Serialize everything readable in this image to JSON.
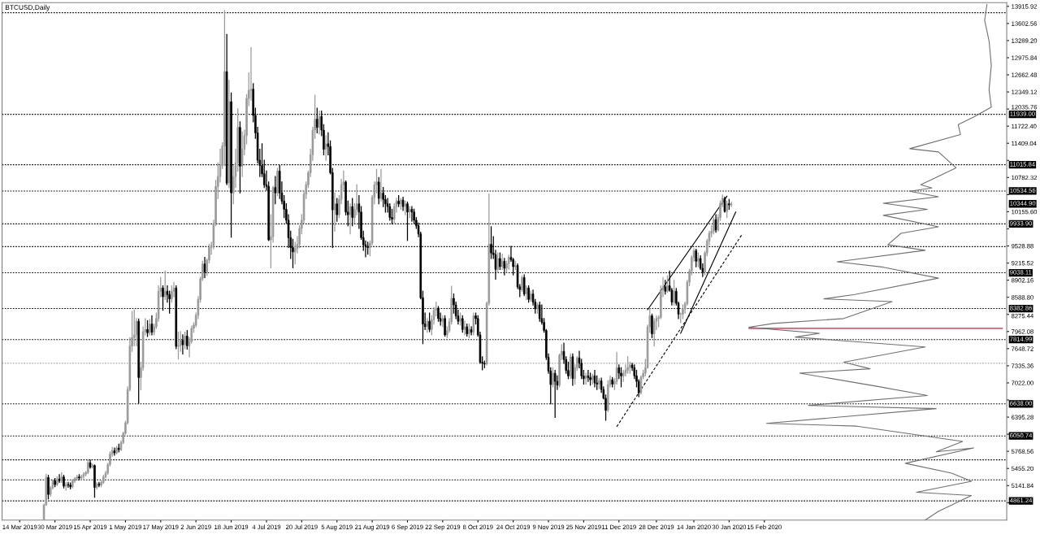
{
  "chart_data": {
    "type": "candlestick",
    "title": "BTCUSD,Daily",
    "annotations": [
      "10344.90"
    ],
    "xlim": [
      "2019-03-06",
      "2020-06-04"
    ],
    "ylim": [
      4509,
      13983
    ],
    "xticks": [
      {
        "value": "2019-03-14",
        "label": "14 Mar 2019"
      },
      {
        "value": "2019-03-30",
        "label": "30 Mar 2019"
      },
      {
        "value": "2019-04-15",
        "label": "15 Apr 2019"
      },
      {
        "value": "2019-05-01",
        "label": "1 May 2019"
      },
      {
        "value": "2019-05-17",
        "label": "17 May 2019"
      },
      {
        "value": "2019-06-02",
        "label": "2 Jun 2019"
      },
      {
        "value": "2019-06-18",
        "label": "18 Jun 2019"
      },
      {
        "value": "2019-07-04",
        "label": "4 Jul 2019"
      },
      {
        "value": "2019-07-20",
        "label": "20 Jul 2019"
      },
      {
        "value": "2019-08-05",
        "label": "5 Aug 2019"
      },
      {
        "value": "2019-08-21",
        "label": "21 Aug 2019"
      },
      {
        "value": "2019-09-06",
        "label": "6 Sep 2019"
      },
      {
        "value": "2019-09-22",
        "label": "22 Sep 2019"
      },
      {
        "value": "2019-10-08",
        "label": "8 Oct 2019"
      },
      {
        "value": "2019-10-24",
        "label": "24 Oct 2019"
      },
      {
        "value": "2019-11-09",
        "label": "9 Nov 2019"
      },
      {
        "value": "2019-11-25",
        "label": "25 Nov 2019"
      },
      {
        "value": "2019-12-11",
        "label": "11 Dec 2019"
      },
      {
        "value": "2019-12-28",
        "label": "28 Dec 2019"
      },
      {
        "value": "2020-01-14",
        "label": "14 Jan 2020"
      },
      {
        "value": "2020-01-30",
        "label": "30 Jan 2020"
      },
      {
        "value": "2020-02-15",
        "label": "15 Feb 2020"
      }
    ],
    "yticks": [
      13915.92,
      13602.56,
      {
        "value": 13289.2,
        "label": "13289.20"
      },
      12975.84,
      12662.48,
      12349.12,
      12035.76,
      {
        "value": 11722.4,
        "label": "11722.40"
      },
      11409.04,
      {
        "value": 11095.68,
        "label": null
      },
      10782.32,
      {
        "value": 10468.96,
        "label": null
      },
      {
        "value": 10155.6,
        "label": "10155.60"
      },
      {
        "value": 9842.24,
        "label": null
      },
      9528.88,
      9215.52,
      8902.16,
      {
        "value": 8588.8,
        "label": "8588.80"
      },
      8275.44,
      7962.08,
      7648.72,
      7335.36,
      {
        "value": 7022.0,
        "label": "7022.00"
      },
      {
        "value": 6708.64,
        "label": null
      },
      6395.28,
      {
        "value": 6081.92,
        "label": null
      },
      5768.56,
      {
        "value": 5455.2,
        "label": "5455.20"
      },
      5141.84,
      {
        "value": 4828.48,
        "label": null
      }
    ],
    "ref_lines": [
      {
        "axis": "y",
        "value": 13800,
        "label": null,
        "color": "#000000",
        "line_style": "dotted"
      },
      {
        "axis": "y",
        "value": 11939.0,
        "label": "11939.00",
        "color": "#000000",
        "line_style": "dotted"
      },
      {
        "axis": "y",
        "value": 11015.84,
        "label": "11015.84",
        "color": "#000000",
        "line_style": "dotted"
      },
      {
        "axis": "y",
        "value": 10534.56,
        "label": "10534.56",
        "color": "#000000",
        "line_style": "dotted"
      },
      {
        "axis": "y",
        "value": 9933.9,
        "label": "9933.90",
        "color": "#000000",
        "line_style": "dotted"
      },
      {
        "axis": "y",
        "value": 9517,
        "label": null,
        "color": "#000000",
        "line_style": "dotted"
      },
      {
        "axis": "y",
        "value": 9038.11,
        "label": "9038.11",
        "color": "#000000",
        "line_style": "dotted"
      },
      {
        "axis": "y",
        "value": 8382.86,
        "label": "8382.86",
        "color": "#000000",
        "line_style": "dotted"
      },
      {
        "axis": "y",
        "value": 7814.99,
        "label": "7814.99",
        "color": "#000000",
        "line_style": "dotted"
      },
      {
        "axis": "y",
        "value": 7380,
        "label": null,
        "color": "#a8a8a8",
        "line_style": "dotted"
      },
      {
        "axis": "y",
        "value": 6638.0,
        "label": "6638.00",
        "color": "#000000",
        "line_style": "dotted"
      },
      {
        "axis": "y",
        "value": 6050.74,
        "label": "6050.74",
        "color": "#000000",
        "line_style": "dotted"
      },
      {
        "axis": "y",
        "value": 5613,
        "label": null,
        "color": "#000000",
        "line_style": "dotted"
      },
      {
        "axis": "y",
        "value": 5247,
        "label": null,
        "color": "#000000",
        "line_style": "dotted"
      },
      {
        "axis": "y",
        "value": 4861.24,
        "label": "4861.24",
        "color": "#000000",
        "line_style": "dotted"
      }
    ],
    "series": [
      {
        "type": "line",
        "color": "#000000",
        "x": [
          "2019-12-24",
          "2020-01-29"
        ],
        "values": [
          8360,
          10440
        ]
      },
      {
        "type": "line",
        "color": "#000000",
        "x": [
          "2020-01-08",
          "2020-02-02"
        ],
        "values": [
          7930,
          10150
        ]
      },
      {
        "type": "line",
        "color": "#000000",
        "line_style": "dashed",
        "x": [
          "2019-12-10",
          "2020-02-05"
        ],
        "values": [
          6220,
          9750
        ]
      },
      {
        "type": "line",
        "color": "#e0103a",
        "x": [
          "2020-02-08",
          "2020-06-02"
        ],
        "values": [
          8020,
          8020
        ]
      },
      {
        "type": "line",
        "color": "#707070",
        "x": [
          "2020-05-26",
          "2020-05-25",
          "2020-05-27",
          "2020-05-28",
          "2020-05-27",
          "2020-05-28",
          "2020-05-20",
          "2020-05-13",
          "2020-05-14",
          "2020-04-21",
          "2020-05-04",
          "2020-05-12",
          "2020-04-26",
          "2020-05-01",
          "2020-04-21",
          "2020-05-04",
          "2020-04-09",
          "2020-04-29",
          "2020-04-09",
          "2020-05-04",
          "2020-04-17",
          "2020-04-11",
          "2020-04-28",
          "2020-03-19",
          "2020-04-09",
          "2020-05-04",
          "2020-03-27",
          "2020-03-13",
          "2020-04-13",
          "2020-03-22",
          "2020-02-19",
          "2020-02-08",
          "2020-03-11",
          "2020-02-29",
          "2020-04-28",
          "2020-03-22",
          "2020-04-03",
          "2020-03-02",
          "2020-04-06",
          "2020-04-29",
          "2020-03-06",
          "2020-05-03",
          "2020-02-16",
          "2020-03-28",
          "2020-05-15",
          "2020-05-03",
          "2020-05-20",
          "2020-04-19",
          "2020-05-10",
          "2020-05-19",
          "2020-04-24",
          "2020-05-19",
          "2020-05-04",
          "2020-04-28"
        ],
        "values": [
          13950,
          13660,
          13280,
          12840,
          12390,
          12070,
          11890,
          11750,
          11570,
          11310,
          11250,
          10960,
          10650,
          10590,
          10530,
          10430,
          10310,
          10200,
          10090,
          9880,
          9760,
          9550,
          9450,
          9240,
          9140,
          8940,
          8640,
          8560,
          8510,
          8200,
          8110,
          8040,
          7930,
          7860,
          7680,
          7400,
          7280,
          7200,
          6960,
          6790,
          6610,
          6550,
          6280,
          6230,
          5950,
          5760,
          5830,
          5550,
          5370,
          5220,
          5020,
          4960,
          4670,
          4510
        ]
      }
    ],
    "x": [
      "2019-03-25",
      "2019-03-26",
      "2019-03-27",
      "2019-03-28",
      "2019-03-29",
      "2019-03-30",
      "2019-03-31",
      "2019-04-01",
      "2019-04-02",
      "2019-04-03",
      "2019-04-04",
      "2019-04-05",
      "2019-04-06",
      "2019-04-07",
      "2019-04-08",
      "2019-04-09",
      "2019-04-10",
      "2019-04-11",
      "2019-04-12",
      "2019-04-13",
      "2019-04-14",
      "2019-04-15",
      "2019-04-16",
      "2019-04-17",
      "2019-04-18",
      "2019-04-19",
      "2019-04-20",
      "2019-04-21",
      "2019-04-22",
      "2019-04-23",
      "2019-04-24",
      "2019-04-25",
      "2019-04-26",
      "2019-04-27",
      "2019-04-28",
      "2019-04-29",
      "2019-04-30",
      "2019-05-01",
      "2019-05-02",
      "2019-05-03",
      "2019-05-04",
      "2019-05-05",
      "2019-05-06",
      "2019-05-07",
      "2019-05-08",
      "2019-05-09",
      "2019-05-10",
      "2019-05-11",
      "2019-05-12",
      "2019-05-13",
      "2019-05-14",
      "2019-05-15",
      "2019-05-16",
      "2019-05-17",
      "2019-05-18",
      "2019-05-19",
      "2019-05-20",
      "2019-05-21",
      "2019-05-22",
      "2019-05-23",
      "2019-05-24",
      "2019-05-25",
      "2019-05-26",
      "2019-05-27",
      "2019-05-28",
      "2019-05-29",
      "2019-05-30",
      "2019-05-31",
      "2019-06-01",
      "2019-06-02",
      "2019-06-03",
      "2019-06-04",
      "2019-06-05",
      "2019-06-06",
      "2019-06-07",
      "2019-06-08",
      "2019-06-09",
      "2019-06-10",
      "2019-06-11",
      "2019-06-12",
      "2019-06-13",
      "2019-06-14",
      "2019-06-15",
      "2019-06-16",
      "2019-06-17",
      "2019-06-18",
      "2019-06-19",
      "2019-06-20",
      "2019-06-21",
      "2019-06-22",
      "2019-06-23",
      "2019-06-24",
      "2019-06-25",
      "2019-06-26",
      "2019-06-27",
      "2019-06-28",
      "2019-06-29",
      "2019-06-30",
      "2019-07-01",
      "2019-07-02",
      "2019-07-03",
      "2019-07-04",
      "2019-07-05",
      "2019-07-06",
      "2019-07-07",
      "2019-07-08",
      "2019-07-09",
      "2019-07-10",
      "2019-07-11",
      "2019-07-12",
      "2019-07-13",
      "2019-07-14",
      "2019-07-15",
      "2019-07-16",
      "2019-07-17",
      "2019-07-18",
      "2019-07-19",
      "2019-07-20",
      "2019-07-21",
      "2019-07-22",
      "2019-07-23",
      "2019-07-24",
      "2019-07-25",
      "2019-07-26",
      "2019-07-27",
      "2019-07-28",
      "2019-07-29",
      "2019-07-30",
      "2019-07-31",
      "2019-08-01",
      "2019-08-02",
      "2019-08-03",
      "2019-08-04",
      "2019-08-05",
      "2019-08-06",
      "2019-08-07",
      "2019-08-08",
      "2019-08-09",
      "2019-08-10",
      "2019-08-11",
      "2019-08-12",
      "2019-08-13",
      "2019-08-14",
      "2019-08-15",
      "2019-08-16",
      "2019-08-17",
      "2019-08-18",
      "2019-08-19",
      "2019-08-20",
      "2019-08-21",
      "2019-08-22",
      "2019-08-23",
      "2019-08-24",
      "2019-08-25",
      "2019-08-26",
      "2019-08-27",
      "2019-08-28",
      "2019-08-29",
      "2019-08-30",
      "2019-08-31",
      "2019-09-01",
      "2019-09-02",
      "2019-09-03",
      "2019-09-04",
      "2019-09-05",
      "2019-09-06",
      "2019-09-07",
      "2019-09-08",
      "2019-09-09",
      "2019-09-10",
      "2019-09-11",
      "2019-09-12",
      "2019-09-13",
      "2019-09-14",
      "2019-09-15",
      "2019-09-16",
      "2019-09-17",
      "2019-09-18",
      "2019-09-19",
      "2019-09-20",
      "2019-09-21",
      "2019-09-22",
      "2019-09-23",
      "2019-09-24",
      "2019-09-25",
      "2019-09-26",
      "2019-09-27",
      "2019-09-28",
      "2019-09-29",
      "2019-09-30",
      "2019-10-01",
      "2019-10-02",
      "2019-10-03",
      "2019-10-04",
      "2019-10-05",
      "2019-10-06",
      "2019-10-07",
      "2019-10-08",
      "2019-10-09",
      "2019-10-10",
      "2019-10-11",
      "2019-10-12",
      "2019-10-13",
      "2019-10-14",
      "2019-10-15",
      "2019-10-16",
      "2019-10-17",
      "2019-10-18",
      "2019-10-19",
      "2019-10-20",
      "2019-10-21",
      "2019-10-22",
      "2019-10-23",
      "2019-10-24",
      "2019-10-25",
      "2019-10-26",
      "2019-10-27",
      "2019-10-28",
      "2019-10-29",
      "2019-10-30",
      "2019-10-31",
      "2019-11-01",
      "2019-11-02",
      "2019-11-03",
      "2019-11-04",
      "2019-11-05",
      "2019-11-06",
      "2019-11-07",
      "2019-11-08",
      "2019-11-09",
      "2019-11-10",
      "2019-11-11",
      "2019-11-12",
      "2019-11-13",
      "2019-11-14",
      "2019-11-15",
      "2019-11-16",
      "2019-11-17",
      "2019-11-18",
      "2019-11-19",
      "2019-11-20",
      "2019-11-21",
      "2019-11-22",
      "2019-11-23",
      "2019-11-24",
      "2019-11-25",
      "2019-11-26",
      "2019-11-27",
      "2019-11-28",
      "2019-11-29",
      "2019-11-30",
      "2019-12-01",
      "2019-12-02",
      "2019-12-03",
      "2019-12-04",
      "2019-12-05",
      "2019-12-06",
      "2019-12-07",
      "2019-12-08",
      "2019-12-09",
      "2019-12-10",
      "2019-12-11",
      "2019-12-12",
      "2019-12-13",
      "2019-12-14",
      "2019-12-15",
      "2019-12-16",
      "2019-12-17",
      "2019-12-18",
      "2019-12-19",
      "2019-12-20",
      "2019-12-21",
      "2019-12-22",
      "2019-12-23",
      "2019-12-24",
      "2019-12-25",
      "2019-12-26",
      "2019-12-27",
      "2019-12-28",
      "2019-12-29",
      "2019-12-30",
      "2019-12-31",
      "2020-01-01",
      "2020-01-02",
      "2020-01-03",
      "2020-01-04",
      "2020-01-05",
      "2020-01-06",
      "2020-01-07",
      "2020-01-08",
      "2020-01-09",
      "2020-01-10",
      "2020-01-11",
      "2020-01-12",
      "2020-01-13",
      "2020-01-14",
      "2020-01-15",
      "2020-01-16",
      "2020-01-17",
      "2020-01-18",
      "2020-01-19",
      "2020-01-20",
      "2020-01-21",
      "2020-01-22",
      "2020-01-23",
      "2020-01-24",
      "2020-01-25",
      "2020-01-26",
      "2020-01-27",
      "2020-01-28",
      "2020-01-29",
      "2020-01-30",
      "2020-01-31"
    ],
    "ohlc": [
      [
        4520,
        4800,
        4520,
        4790
      ],
      [
        4790,
        5350,
        4780,
        5290
      ],
      [
        5290,
        5330,
        4900,
        4980
      ],
      [
        4980,
        5130,
        4950,
        5100
      ],
      [
        5100,
        5250,
        5080,
        5230
      ],
      [
        5230,
        5270,
        5120,
        5160
      ],
      [
        5160,
        5300,
        5140,
        5260
      ],
      [
        5260,
        5340,
        5200,
        5230
      ],
      [
        5230,
        5380,
        5200,
        5300
      ],
      [
        5300,
        5330,
        5100,
        5130
      ],
      [
        5130,
        5200,
        5060,
        5160
      ],
      [
        5160,
        5200,
        5110,
        5150
      ],
      [
        5150,
        5190,
        5080,
        5120
      ],
      [
        5120,
        5250,
        5100,
        5230
      ],
      [
        5230,
        5290,
        5200,
        5270
      ],
      [
        5270,
        5330,
        5240,
        5300
      ],
      [
        5300,
        5340,
        5250,
        5280
      ],
      [
        5280,
        5330,
        5240,
        5310
      ],
      [
        5310,
        5380,
        5270,
        5350
      ],
      [
        5350,
        5400,
        5320,
        5380
      ],
      [
        5380,
        5600,
        5360,
        5560
      ],
      [
        5560,
        5610,
        5460,
        5480
      ],
      [
        5480,
        5540,
        5460,
        5510
      ],
      [
        5510,
        5520,
        4930,
        5110
      ],
      [
        5110,
        5200,
        5080,
        5170
      ],
      [
        5170,
        5200,
        5120,
        5150
      ],
      [
        5150,
        5230,
        5120,
        5200
      ],
      [
        5200,
        5330,
        5180,
        5300
      ],
      [
        5300,
        5400,
        5280,
        5370
      ],
      [
        5370,
        5550,
        5350,
        5530
      ],
      [
        5530,
        5760,
        5500,
        5720
      ],
      [
        5720,
        5840,
        5680,
        5780
      ],
      [
        5780,
        5830,
        5700,
        5740
      ],
      [
        5740,
        5860,
        5720,
        5830
      ],
      [
        5830,
        5900,
        5760,
        5800
      ],
      [
        5800,
        5960,
        5780,
        5930
      ],
      [
        5930,
        6120,
        5910,
        6100
      ],
      [
        6100,
        6320,
        6080,
        6290
      ],
      [
        6290,
        6950,
        6270,
        6900
      ],
      [
        6900,
        7850,
        6880,
        7700
      ],
      [
        7700,
        8330,
        7600,
        7850
      ],
      [
        7850,
        8360,
        7700,
        7900
      ],
      [
        7900,
        8200,
        7700,
        8150
      ],
      [
        8150,
        8190,
        6650,
        7120
      ],
      [
        7120,
        7400,
        6900,
        7300
      ],
      [
        7300,
        8050,
        7250,
        7960
      ],
      [
        7960,
        8200,
        7900,
        8000
      ],
      [
        8000,
        8160,
        7870,
        7940
      ],
      [
        7940,
        8180,
        7900,
        8100
      ],
      [
        8100,
        8250,
        7900,
        7950
      ],
      [
        7950,
        8100,
        7900,
        8050
      ],
      [
        8050,
        8300,
        8020,
        8200
      ],
      [
        8200,
        8800,
        8150,
        8700
      ],
      [
        8700,
        8950,
        8600,
        8760
      ],
      [
        8760,
        8800,
        8350,
        8600
      ],
      [
        8600,
        9070,
        8550,
        8700
      ],
      [
        8700,
        8800,
        8500,
        8640
      ],
      [
        8640,
        8700,
        8300,
        8560
      ],
      [
        8560,
        8800,
        8500,
        8700
      ],
      [
        8700,
        8860,
        8600,
        8760
      ],
      [
        8760,
        8800,
        7650,
        7690
      ],
      [
        7690,
        7950,
        7460,
        7700
      ],
      [
        7700,
        7960,
        7600,
        7800
      ],
      [
        7800,
        7900,
        7550,
        7720
      ],
      [
        7720,
        7950,
        7650,
        7880
      ],
      [
        7880,
        7980,
        7640,
        7700
      ],
      [
        7700,
        7850,
        7500,
        7780
      ],
      [
        7780,
        8060,
        7750,
        8020
      ],
      [
        8020,
        8120,
        7950,
        8080
      ],
      [
        8080,
        8300,
        8050,
        8260
      ],
      [
        8260,
        8600,
        8200,
        8550
      ],
      [
        8550,
        8960,
        8500,
        8930
      ],
      [
        8930,
        9250,
        8900,
        9200
      ],
      [
        9200,
        9320,
        8950,
        9050
      ],
      [
        9050,
        9290,
        8990,
        9270
      ],
      [
        9270,
        9560,
        9220,
        9500
      ],
      [
        9500,
        9600,
        9380,
        9540
      ],
      [
        9540,
        10000,
        9480,
        9940
      ],
      [
        9940,
        10730,
        9900,
        10620
      ],
      [
        10620,
        11050,
        10400,
        10800
      ],
      [
        10800,
        11300,
        10700,
        11000
      ],
      [
        11000,
        11420,
        10950,
        11360
      ],
      [
        11360,
        13840,
        11000,
        12720
      ],
      [
        12720,
        13400,
        10650,
        10680
      ],
      [
        10680,
        12560,
        10600,
        12170
      ],
      [
        12170,
        12330,
        9690,
        10500
      ],
      [
        10500,
        11000,
        10300,
        10800
      ],
      [
        10800,
        11300,
        10600,
        11050
      ],
      [
        11050,
        12040,
        10900,
        11700
      ],
      [
        11700,
        11800,
        10500,
        10990
      ],
      [
        10990,
        11620,
        10800,
        11300
      ],
      [
        11300,
        11650,
        11200,
        11550
      ],
      [
        11550,
        12300,
        11400,
        12230
      ],
      [
        12230,
        12700,
        12100,
        12380
      ],
      [
        12380,
        13160,
        12200,
        12400
      ],
      [
        12400,
        12500,
        11800,
        11920
      ],
      [
        11920,
        12050,
        11500,
        11600
      ],
      [
        11600,
        11700,
        11050,
        11100
      ],
      [
        11100,
        11300,
        10800,
        11000
      ],
      [
        11000,
        11400,
        10800,
        10850
      ],
      [
        10850,
        11100,
        10600,
        10650
      ],
      [
        10650,
        10900,
        10550,
        10620
      ],
      [
        10620,
        10700,
        9630,
        9640
      ],
      [
        9640,
        10100,
        9130,
        9700
      ],
      [
        9700,
        10620,
        9600,
        10600
      ],
      [
        10600,
        10800,
        10300,
        10500
      ],
      [
        10500,
        10950,
        10450,
        10900
      ],
      [
        10900,
        11000,
        10400,
        10500
      ],
      [
        10500,
        10700,
        10300,
        10350
      ],
      [
        10350,
        10450,
        10050,
        10200
      ],
      [
        10200,
        10300,
        9950,
        10000
      ],
      [
        10000,
        10100,
        9500,
        9680
      ],
      [
        9680,
        9800,
        9300,
        9500
      ],
      [
        9500,
        9650,
        9130,
        9420
      ],
      [
        9420,
        9600,
        9200,
        9480
      ],
      [
        9480,
        9700,
        9400,
        9560
      ],
      [
        9560,
        9900,
        9500,
        9850
      ],
      [
        9850,
        10100,
        9750,
        10000
      ],
      [
        10000,
        10520,
        9950,
        10480
      ],
      [
        10480,
        10700,
        10400,
        10650
      ],
      [
        10650,
        10900,
        10600,
        10870
      ],
      [
        10870,
        11300,
        10800,
        11200
      ],
      [
        11200,
        11700,
        11100,
        11650
      ],
      [
        11650,
        12290,
        11500,
        11850
      ],
      [
        11850,
        12050,
        11600,
        11700
      ],
      [
        11700,
        12000,
        11580,
        11900
      ],
      [
        11900,
        12000,
        11550,
        11650
      ],
      [
        11650,
        11750,
        11200,
        11300
      ],
      [
        11300,
        11550,
        11100,
        11400
      ],
      [
        11400,
        11600,
        11200,
        11350
      ],
      [
        11350,
        11450,
        10850,
        10870
      ],
      [
        10870,
        10950,
        9500,
        10190
      ],
      [
        10190,
        10500,
        9800,
        10300
      ],
      [
        10300,
        10400,
        9980,
        10100
      ],
      [
        10100,
        10450,
        10050,
        10380
      ],
      [
        10380,
        10750,
        10300,
        10650
      ],
      [
        10650,
        10900,
        10550,
        10700
      ],
      [
        10700,
        10720,
        10100,
        10150
      ],
      [
        10150,
        10350,
        9900,
        10100
      ],
      [
        10100,
        10300,
        9750,
        10250
      ],
      [
        10250,
        10400,
        9900,
        10050
      ],
      [
        10050,
        10300,
        9950,
        10200
      ],
      [
        10200,
        10650,
        10100,
        10300
      ],
      [
        10300,
        10450,
        9850,
        10150
      ],
      [
        10150,
        10250,
        9650,
        9680
      ],
      [
        9680,
        9800,
        9450,
        9550
      ],
      [
        9550,
        9620,
        9330,
        9520
      ],
      [
        9520,
        9600,
        9380,
        9500
      ],
      [
        9500,
        9620,
        9350,
        9580
      ],
      [
        9580,
        10450,
        9550,
        10420
      ],
      [
        10420,
        10700,
        10300,
        10650
      ],
      [
        10650,
        10930,
        10500,
        10700
      ],
      [
        10700,
        10780,
        10300,
        10400
      ],
      [
        10400,
        10930,
        10350,
        10500
      ],
      [
        10500,
        10600,
        10250,
        10380
      ],
      [
        10380,
        10450,
        10150,
        10300
      ],
      [
        10300,
        10400,
        10150,
        10250
      ],
      [
        10250,
        10300,
        10000,
        10050
      ],
      [
        10050,
        10200,
        9930,
        10020
      ],
      [
        10020,
        10300,
        9950,
        10250
      ],
      [
        10250,
        10400,
        10150,
        10350
      ],
      [
        10350,
        10450,
        10250,
        10300
      ],
      [
        10300,
        10400,
        10200,
        10370
      ],
      [
        10370,
        10420,
        10180,
        10250
      ],
      [
        10250,
        10350,
        10100,
        10300
      ],
      [
        10300,
        10330,
        9630,
        10150
      ],
      [
        10150,
        10250,
        10050,
        10200
      ],
      [
        10200,
        10250,
        9980,
        10150
      ],
      [
        10150,
        10200,
        9950,
        10000
      ],
      [
        10000,
        10050,
        9850,
        9900
      ],
      [
        9900,
        9950,
        9700,
        9750
      ],
      [
        9750,
        9780,
        8560,
        8580
      ],
      [
        8580,
        8700,
        7740,
        8100
      ],
      [
        8100,
        8300,
        8000,
        8050
      ],
      [
        8050,
        8200,
        7950,
        8150
      ],
      [
        8150,
        8300,
        7960,
        8000
      ],
      [
        8000,
        8250,
        7900,
        8180
      ],
      [
        8180,
        8400,
        8100,
        8350
      ],
      [
        8350,
        8500,
        8250,
        8390
      ],
      [
        8390,
        8420,
        8150,
        8200
      ],
      [
        8200,
        8300,
        8080,
        8150
      ],
      [
        8150,
        8250,
        8050,
        8200
      ],
      [
        8200,
        8250,
        7880,
        7900
      ],
      [
        7900,
        8050,
        7850,
        7980
      ],
      [
        7980,
        8200,
        7950,
        8140
      ],
      [
        8140,
        8790,
        8100,
        8570
      ],
      [
        8570,
        8650,
        8300,
        8450
      ],
      [
        8450,
        8500,
        8200,
        8250
      ],
      [
        8250,
        8350,
        8100,
        8150
      ],
      [
        8150,
        8300,
        8080,
        8200
      ],
      [
        8200,
        8250,
        7950,
        8000
      ],
      [
        8000,
        8150,
        7900,
        8050
      ],
      [
        8050,
        8100,
        7880,
        7920
      ],
      [
        7920,
        8100,
        7850,
        8000
      ],
      [
        8000,
        8050,
        7900,
        7950
      ],
      [
        7950,
        8300,
        7900,
        8250
      ],
      [
        8250,
        8300,
        8100,
        8200
      ],
      [
        8200,
        8250,
        7880,
        7900
      ],
      [
        7900,
        7950,
        7380,
        7400
      ],
      [
        7400,
        7500,
        7260,
        7380
      ],
      [
        7380,
        7420,
        7300,
        7370
      ],
      [
        7370,
        8500,
        7350,
        8480
      ],
      [
        8480,
        10480,
        8450,
        9560
      ],
      [
        9560,
        9880,
        9300,
        9400
      ],
      [
        9400,
        9700,
        9300,
        9370
      ],
      [
        9370,
        9450,
        8920,
        9100
      ],
      [
        9100,
        9400,
        9050,
        9300
      ],
      [
        9300,
        9400,
        9100,
        9150
      ],
      [
        9150,
        9380,
        9100,
        9250
      ],
      [
        9250,
        9300,
        9000,
        9120
      ],
      [
        9120,
        9250,
        9050,
        9200
      ],
      [
        9200,
        9360,
        9100,
        9320
      ],
      [
        9320,
        9520,
        9250,
        9280
      ],
      [
        9280,
        9300,
        9000,
        9150
      ],
      [
        9150,
        9250,
        9100,
        9170
      ],
      [
        9170,
        9200,
        8750,
        8780
      ],
      [
        8780,
        8820,
        8600,
        8730
      ],
      [
        8730,
        8980,
        8700,
        8950
      ],
      [
        8950,
        9000,
        8620,
        8650
      ],
      [
        8650,
        8800,
        8550,
        8760
      ],
      [
        8760,
        8800,
        8500,
        8550
      ],
      [
        8550,
        8700,
        8520,
        8650
      ],
      [
        8650,
        8720,
        8450,
        8500
      ],
      [
        8500,
        8550,
        8300,
        8380
      ],
      [
        8380,
        8480,
        8300,
        8450
      ],
      [
        8450,
        8500,
        8150,
        8200
      ],
      [
        8200,
        8450,
        8100,
        8130
      ],
      [
        8130,
        8200,
        7950,
        7980
      ],
      [
        7980,
        8000,
        7450,
        7490
      ],
      [
        7490,
        7550,
        7200,
        7240
      ],
      [
        7240,
        7300,
        6640,
        6990
      ],
      [
        6990,
        7300,
        6950,
        7200
      ],
      [
        7200,
        7250,
        6390,
        7050
      ],
      [
        7050,
        7150,
        6900,
        6980
      ],
      [
        6980,
        7550,
        6950,
        7530
      ],
      [
        7530,
        7720,
        7450,
        7600
      ],
      [
        7600,
        7750,
        7380,
        7450
      ],
      [
        7450,
        7500,
        7200,
        7250
      ],
      [
        7250,
        7400,
        7100,
        7150
      ],
      [
        7150,
        7550,
        7100,
        7500
      ],
      [
        7500,
        7550,
        6980,
        7100
      ],
      [
        7100,
        7350,
        7000,
        7300
      ],
      [
        7300,
        7500,
        7250,
        7480
      ],
      [
        7480,
        7600,
        7300,
        7380
      ],
      [
        7380,
        7450,
        7100,
        7150
      ],
      [
        7150,
        7250,
        7000,
        7100
      ],
      [
        7100,
        7200,
        7000,
        7150
      ],
      [
        7150,
        7250,
        7050,
        7120
      ],
      [
        7120,
        7200,
        6980,
        7080
      ],
      [
        7080,
        7180,
        7000,
        7150
      ],
      [
        7150,
        7250,
        6950,
        7020
      ],
      [
        7020,
        7150,
        6900,
        7000
      ],
      [
        7000,
        7100,
        6920,
        7060
      ],
      [
        7060,
        7110,
        6850,
        6900
      ],
      [
        6900,
        6950,
        6730,
        6740
      ],
      [
        6740,
        6800,
        6340,
        6520
      ],
      [
        6520,
        7060,
        6500,
        6990
      ],
      [
        6990,
        7150,
        6950,
        7080
      ],
      [
        7080,
        7120,
        6950,
        7000
      ],
      [
        7000,
        7100,
        6900,
        7050
      ],
      [
        7050,
        7580,
        7000,
        7300
      ],
      [
        7300,
        7350,
        7100,
        7200
      ],
      [
        7200,
        7300,
        6950,
        7150
      ],
      [
        7150,
        7250,
        7050,
        7200
      ],
      [
        7200,
        7350,
        7150,
        7250
      ],
      [
        7250,
        7500,
        7200,
        7300
      ],
      [
        7300,
        7400,
        7200,
        7350
      ],
      [
        7350,
        7380,
        7250,
        7300
      ],
      [
        7300,
        7350,
        7100,
        7150
      ],
      [
        7150,
        7250,
        6950,
        7050
      ],
      [
        7050,
        7080,
        6770,
        6840
      ],
      [
        6840,
        7150,
        6820,
        7130
      ],
      [
        7130,
        7250,
        7100,
        7200
      ],
      [
        7200,
        7450,
        7150,
        7300
      ],
      [
        7300,
        8080,
        7290,
        8050
      ],
      [
        8050,
        8380,
        7950,
        8250
      ],
      [
        8250,
        8280,
        7850,
        7920
      ],
      [
        7920,
        8200,
        7700,
        8150
      ],
      [
        8150,
        8250,
        8000,
        8200
      ],
      [
        8200,
        8250,
        8050,
        8220
      ],
      [
        8220,
        8800,
        8200,
        8730
      ],
      [
        8730,
        8950,
        8600,
        8780
      ],
      [
        8780,
        8900,
        8650,
        8700
      ],
      [
        8700,
        8980,
        8680,
        8800
      ],
      [
        8800,
        9070,
        8700,
        8720
      ],
      [
        8720,
        8750,
        8450,
        8500
      ],
      [
        8500,
        8900,
        8450,
        8700
      ],
      [
        8700,
        8750,
        8450,
        8480
      ],
      [
        8480,
        8500,
        8200,
        8280
      ],
      [
        8280,
        8300,
        8130,
        8280
      ],
      [
        8280,
        8450,
        8200,
        8380
      ],
      [
        8380,
        8500,
        8300,
        8470
      ],
      [
        8470,
        8900,
        8450,
        8870
      ],
      [
        8870,
        9100,
        8800,
        9070
      ],
      [
        9070,
        9350,
        9000,
        9320
      ],
      [
        9320,
        9480,
        9250,
        9440
      ],
      [
        9440,
        9470,
        9150,
        9250
      ],
      [
        9250,
        9400,
        9150,
        9300
      ],
      [
        9300,
        9350,
        9100,
        9120
      ],
      [
        9120,
        9200,
        8970,
        9050
      ],
      [
        9050,
        9430,
        9000,
        9400
      ],
      [
        9400,
        9650,
        9350,
        9620
      ],
      [
        9620,
        9800,
        9550,
        9760
      ],
      [
        9760,
        9900,
        9700,
        9800
      ],
      [
        9800,
        10050,
        9750,
        10010
      ],
      [
        10010,
        10100,
        9780,
        9820
      ],
      [
        9820,
        10100,
        9800,
        10050
      ],
      [
        10050,
        10350,
        10000,
        10310
      ],
      [
        10310,
        10460,
        10250,
        10400
      ],
      [
        10400,
        10420,
        10150,
        10160
      ],
      [
        10160,
        10350,
        10050,
        10300
      ],
      [
        10300,
        10380,
        10200,
        10280
      ],
      [
        10280,
        10330,
        10250,
        10300
      ]
    ]
  }
}
